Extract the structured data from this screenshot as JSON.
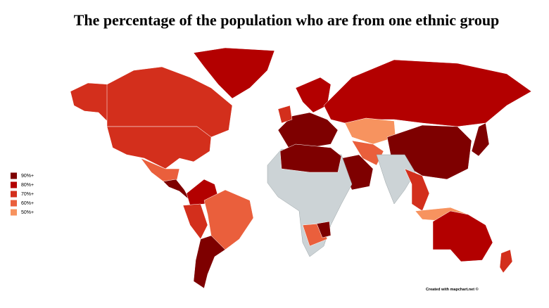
{
  "title": "The percentage of the population who are from one ethnic group",
  "legend": [
    {
      "label": "90%+",
      "color": "#7e0000"
    },
    {
      "label": "80%+",
      "color": "#b30000"
    },
    {
      "label": "70%+",
      "color": "#d32f1c"
    },
    {
      "label": "60%+",
      "color": "#ea5f3c"
    },
    {
      "label": "50%+",
      "color": "#f7935f"
    }
  ],
  "credit": "Created with mapchart.net ©"
}
